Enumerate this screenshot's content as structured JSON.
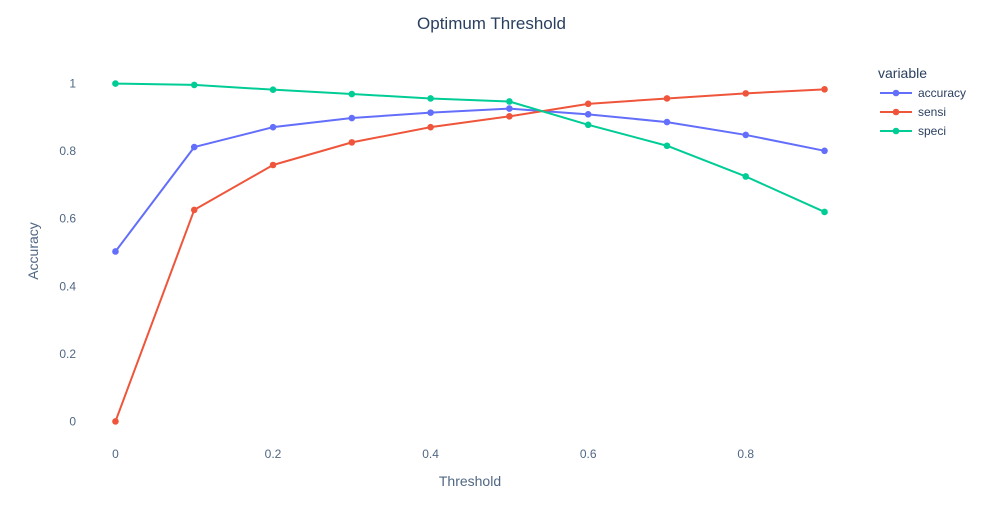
{
  "chart_data": {
    "type": "line",
    "title": "Optimum Threshold",
    "xlabel": "Threshold",
    "ylabel": "Accuracy",
    "x": [
      0,
      0.1,
      0.2,
      0.3,
      0.4,
      0.5,
      0.6,
      0.7,
      0.8,
      0.9
    ],
    "xlim": [
      -0.045,
      0.945
    ],
    "ylim": [
      -0.055,
      1.055
    ],
    "x_ticks": [
      0,
      0.2,
      0.4,
      0.6,
      0.8
    ],
    "x_tick_labels": [
      "0",
      "0.2",
      "0.4",
      "0.6",
      "0.8"
    ],
    "y_ticks": [
      0,
      0.2,
      0.4,
      0.6,
      0.8,
      1
    ],
    "y_tick_labels": [
      "0",
      "0.2",
      "0.4",
      "0.6",
      "0.8",
      "1"
    ],
    "grid": false,
    "legend": {
      "title": "variable",
      "placement": "right"
    },
    "series": [
      {
        "name": "accuracy",
        "color": "#636efa",
        "values": [
          0.503,
          0.812,
          0.871,
          0.898,
          0.914,
          0.926,
          0.909,
          0.886,
          0.848,
          0.801
        ]
      },
      {
        "name": "sensi",
        "color": "#ef553b",
        "values": [
          0.0,
          0.626,
          0.759,
          0.826,
          0.871,
          0.903,
          0.94,
          0.956,
          0.971,
          0.983
        ]
      },
      {
        "name": "speci",
        "color": "#00cc96",
        "values": [
          1.0,
          0.996,
          0.982,
          0.969,
          0.956,
          0.947,
          0.878,
          0.816,
          0.725,
          0.62
        ]
      }
    ]
  }
}
